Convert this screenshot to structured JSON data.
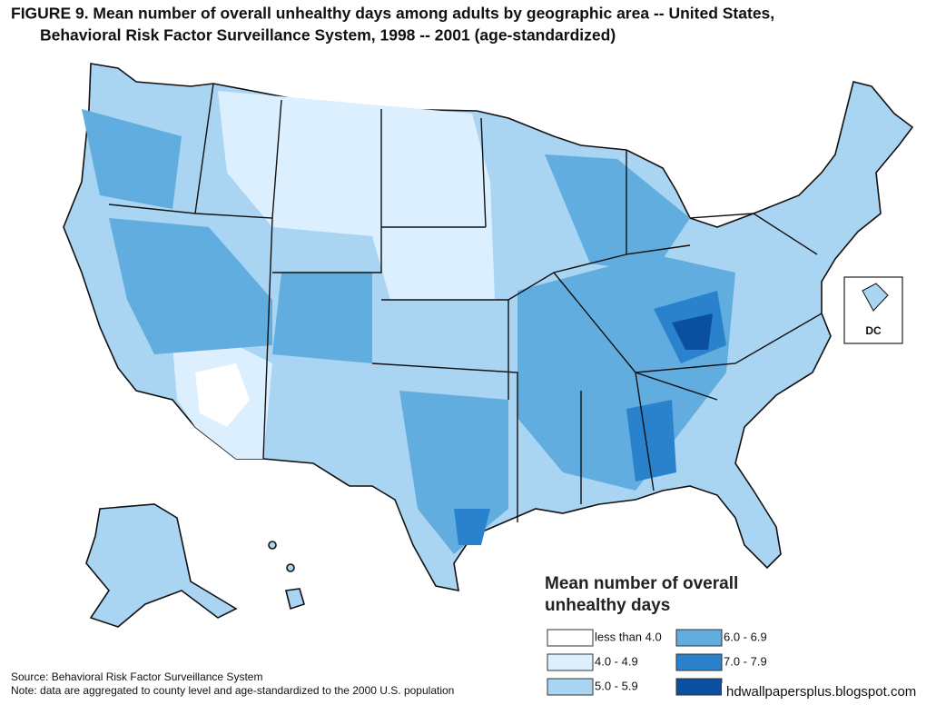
{
  "title": [
    "FIGURE 9.  Mean number of overall unhealthy days among adults by geographic area -- United States,",
    "Behavioral Risk Factor Surveillance System, 1998 -- 2001 (age-standardized)"
  ],
  "legend": {
    "title": [
      "Mean number of overall",
      "unhealthy days"
    ],
    "items": [
      {
        "label": "less than 4.0",
        "color": "#ffffff"
      },
      {
        "label": "4.0 - 4.9",
        "color": "#dcefff"
      },
      {
        "label": "5.0 - 5.9",
        "color": "#a9d4f2"
      },
      {
        "label": "6.0 - 6.9",
        "color": "#62ade0"
      },
      {
        "label": "7.0 - 7.9",
        "color": "#2b82cc"
      },
      {
        "color": "#0a4fa0"
      }
    ]
  },
  "dc_label": "DC",
  "source": "Source:  Behavioral Risk Factor Surveillance System",
  "note": "Note:  data are aggregated to county level and age-standardized to the 2000 U.S. population",
  "watermark": "hdwallpapersplus.blogspot.com"
}
